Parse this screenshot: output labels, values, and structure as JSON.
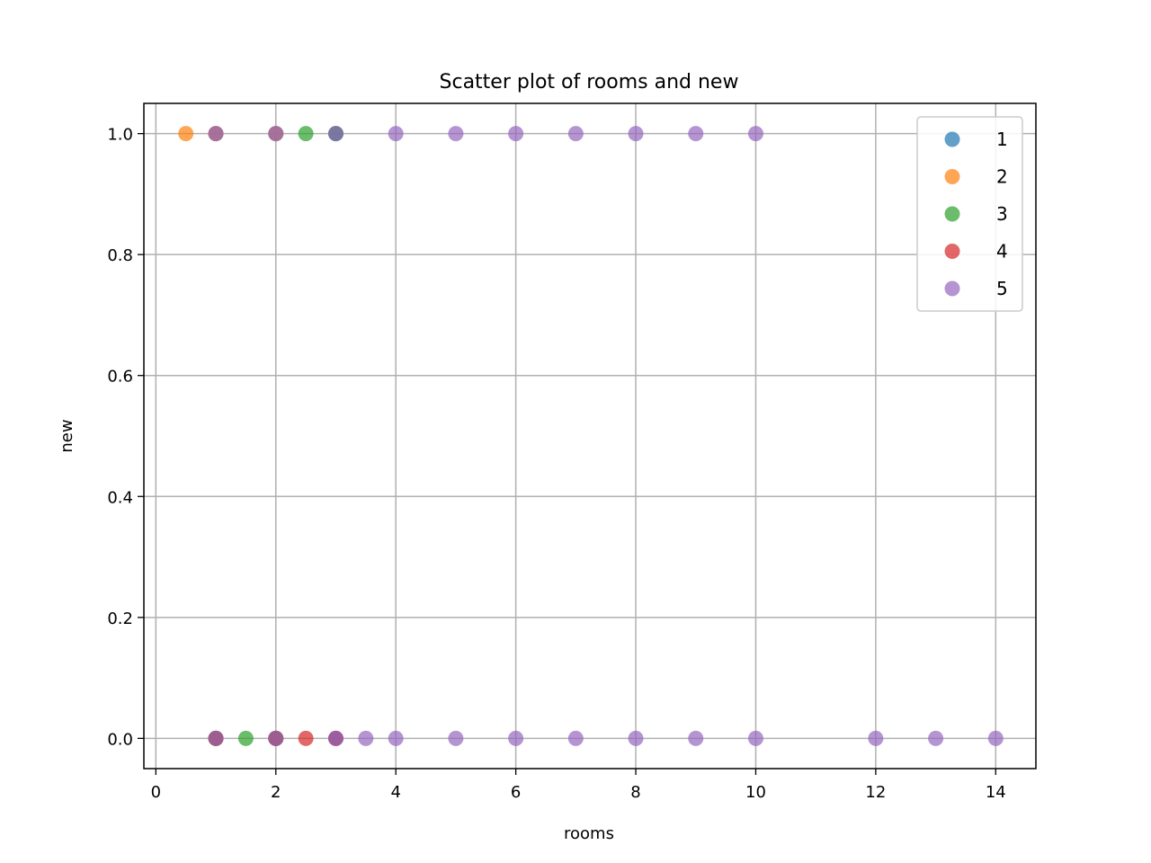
{
  "chart_data": {
    "type": "scatter",
    "title": "Scatter plot of rooms and new",
    "xlabel": "rooms",
    "ylabel": "new",
    "xlim": [
      -0.2,
      14.67
    ],
    "ylim": [
      -0.05,
      1.05
    ],
    "xticks": [
      0,
      2,
      4,
      6,
      8,
      10,
      12,
      14
    ],
    "yticks": [
      0.0,
      0.2,
      0.4,
      0.6,
      0.8,
      1.0
    ],
    "xtick_labels": [
      "0",
      "2",
      "4",
      "6",
      "8",
      "10",
      "12",
      "14"
    ],
    "ytick_labels": [
      "0.0",
      "0.2",
      "0.4",
      "0.6",
      "0.8",
      "1.0"
    ],
    "grid": true,
    "legend_position": "top-right",
    "series": [
      {
        "name": "1",
        "color": "#1f77b4",
        "points": [
          [
            1,
            0
          ],
          [
            2,
            0
          ],
          [
            3,
            0
          ],
          [
            1,
            1
          ],
          [
            2,
            1
          ],
          [
            3,
            1
          ]
        ]
      },
      {
        "name": "2",
        "color": "#ff7f0e",
        "points": [
          [
            0.5,
            1
          ],
          [
            1,
            1
          ],
          [
            2,
            1
          ],
          [
            1,
            0
          ],
          [
            2,
            0
          ]
        ]
      },
      {
        "name": "3",
        "color": "#2ca02c",
        "points": [
          [
            1.5,
            0
          ],
          [
            2.5,
            1
          ],
          [
            1,
            0
          ],
          [
            2,
            0
          ],
          [
            3,
            1
          ]
        ]
      },
      {
        "name": "4",
        "color": "#d62728",
        "points": [
          [
            2.5,
            0
          ],
          [
            1,
            0
          ],
          [
            2,
            0
          ],
          [
            3,
            0
          ]
        ]
      },
      {
        "name": "5",
        "color": "#9467bd",
        "points": [
          [
            1,
            1
          ],
          [
            2,
            1
          ],
          [
            3,
            1
          ],
          [
            4,
            1
          ],
          [
            5,
            1
          ],
          [
            6,
            1
          ],
          [
            7,
            1
          ],
          [
            8,
            1
          ],
          [
            9,
            1
          ],
          [
            10,
            1
          ],
          [
            1,
            0
          ],
          [
            2,
            0
          ],
          [
            3,
            0
          ],
          [
            3.5,
            0
          ],
          [
            4,
            0
          ],
          [
            5,
            0
          ],
          [
            6,
            0
          ],
          [
            7,
            0
          ],
          [
            8,
            0
          ],
          [
            9,
            0
          ],
          [
            10,
            0
          ],
          [
            12,
            0
          ],
          [
            13,
            0
          ],
          [
            14,
            0
          ]
        ]
      }
    ]
  }
}
